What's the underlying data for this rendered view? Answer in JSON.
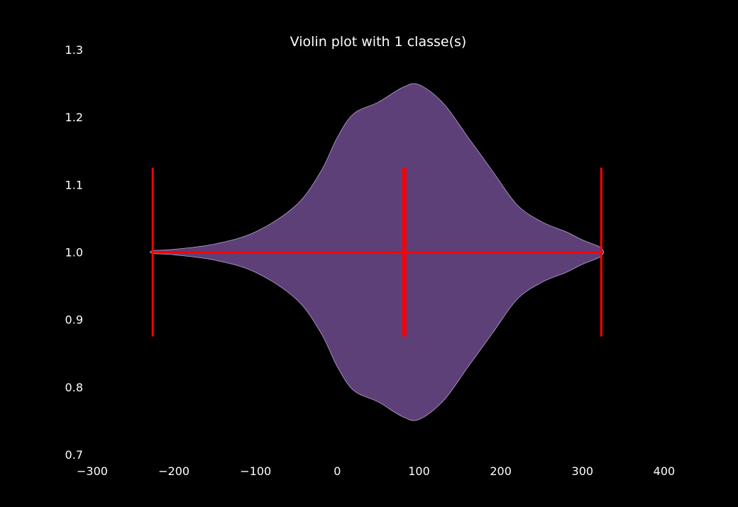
{
  "chart_data": {
    "type": "violin",
    "orientation": "horizontal",
    "title": "Violin plot with 1 classe(s)",
    "xlabel": "",
    "ylabel": "",
    "xlim": [
      -300,
      460
    ],
    "ylim": [
      0.7,
      1.3
    ],
    "x_ticks": [
      -300,
      -200,
      -100,
      0,
      100,
      200,
      300,
      400
    ],
    "x_tick_labels": [
      "−300",
      "−200",
      "−100",
      "0",
      "100",
      "200",
      "300",
      "400"
    ],
    "y_ticks": [
      0.7,
      0.8,
      0.9,
      1.0,
      1.1,
      1.2,
      1.3
    ],
    "y_tick_labels": [
      "0.7",
      "0.8",
      "0.9",
      "1.0",
      "1.1",
      "1.2",
      "1.3"
    ],
    "grid": false,
    "background_color": "#000000",
    "text_color": "#ffffff",
    "violins": [
      {
        "position": 1.0,
        "fill_color": "#5e4078",
        "edge_color": "#b9a6cf",
        "min": -226,
        "max": 323,
        "median": 82,
        "density_profile": [
          {
            "x": -226,
            "half_width": 0.002
          },
          {
            "x": -200,
            "half_width": 0.004
          },
          {
            "x": -150,
            "half_width": 0.012
          },
          {
            "x": -100,
            "half_width": 0.03
          },
          {
            "x": -50,
            "half_width": 0.07
          },
          {
            "x": -20,
            "half_width": 0.12
          },
          {
            "x": 0,
            "half_width": 0.17
          },
          {
            "x": 20,
            "half_width": 0.205
          },
          {
            "x": 50,
            "half_width": 0.222
          },
          {
            "x": 80,
            "half_width": 0.244
          },
          {
            "x": 100,
            "half_width": 0.248
          },
          {
            "x": 130,
            "half_width": 0.22
          },
          {
            "x": 160,
            "half_width": 0.17
          },
          {
            "x": 190,
            "half_width": 0.12
          },
          {
            "x": 220,
            "half_width": 0.07
          },
          {
            "x": 250,
            "half_width": 0.045
          },
          {
            "x": 280,
            "half_width": 0.03
          },
          {
            "x": 300,
            "half_width": 0.018
          },
          {
            "x": 323,
            "half_width": 0.006
          }
        ]
      }
    ],
    "extrema_line_color": "#ff0000"
  }
}
